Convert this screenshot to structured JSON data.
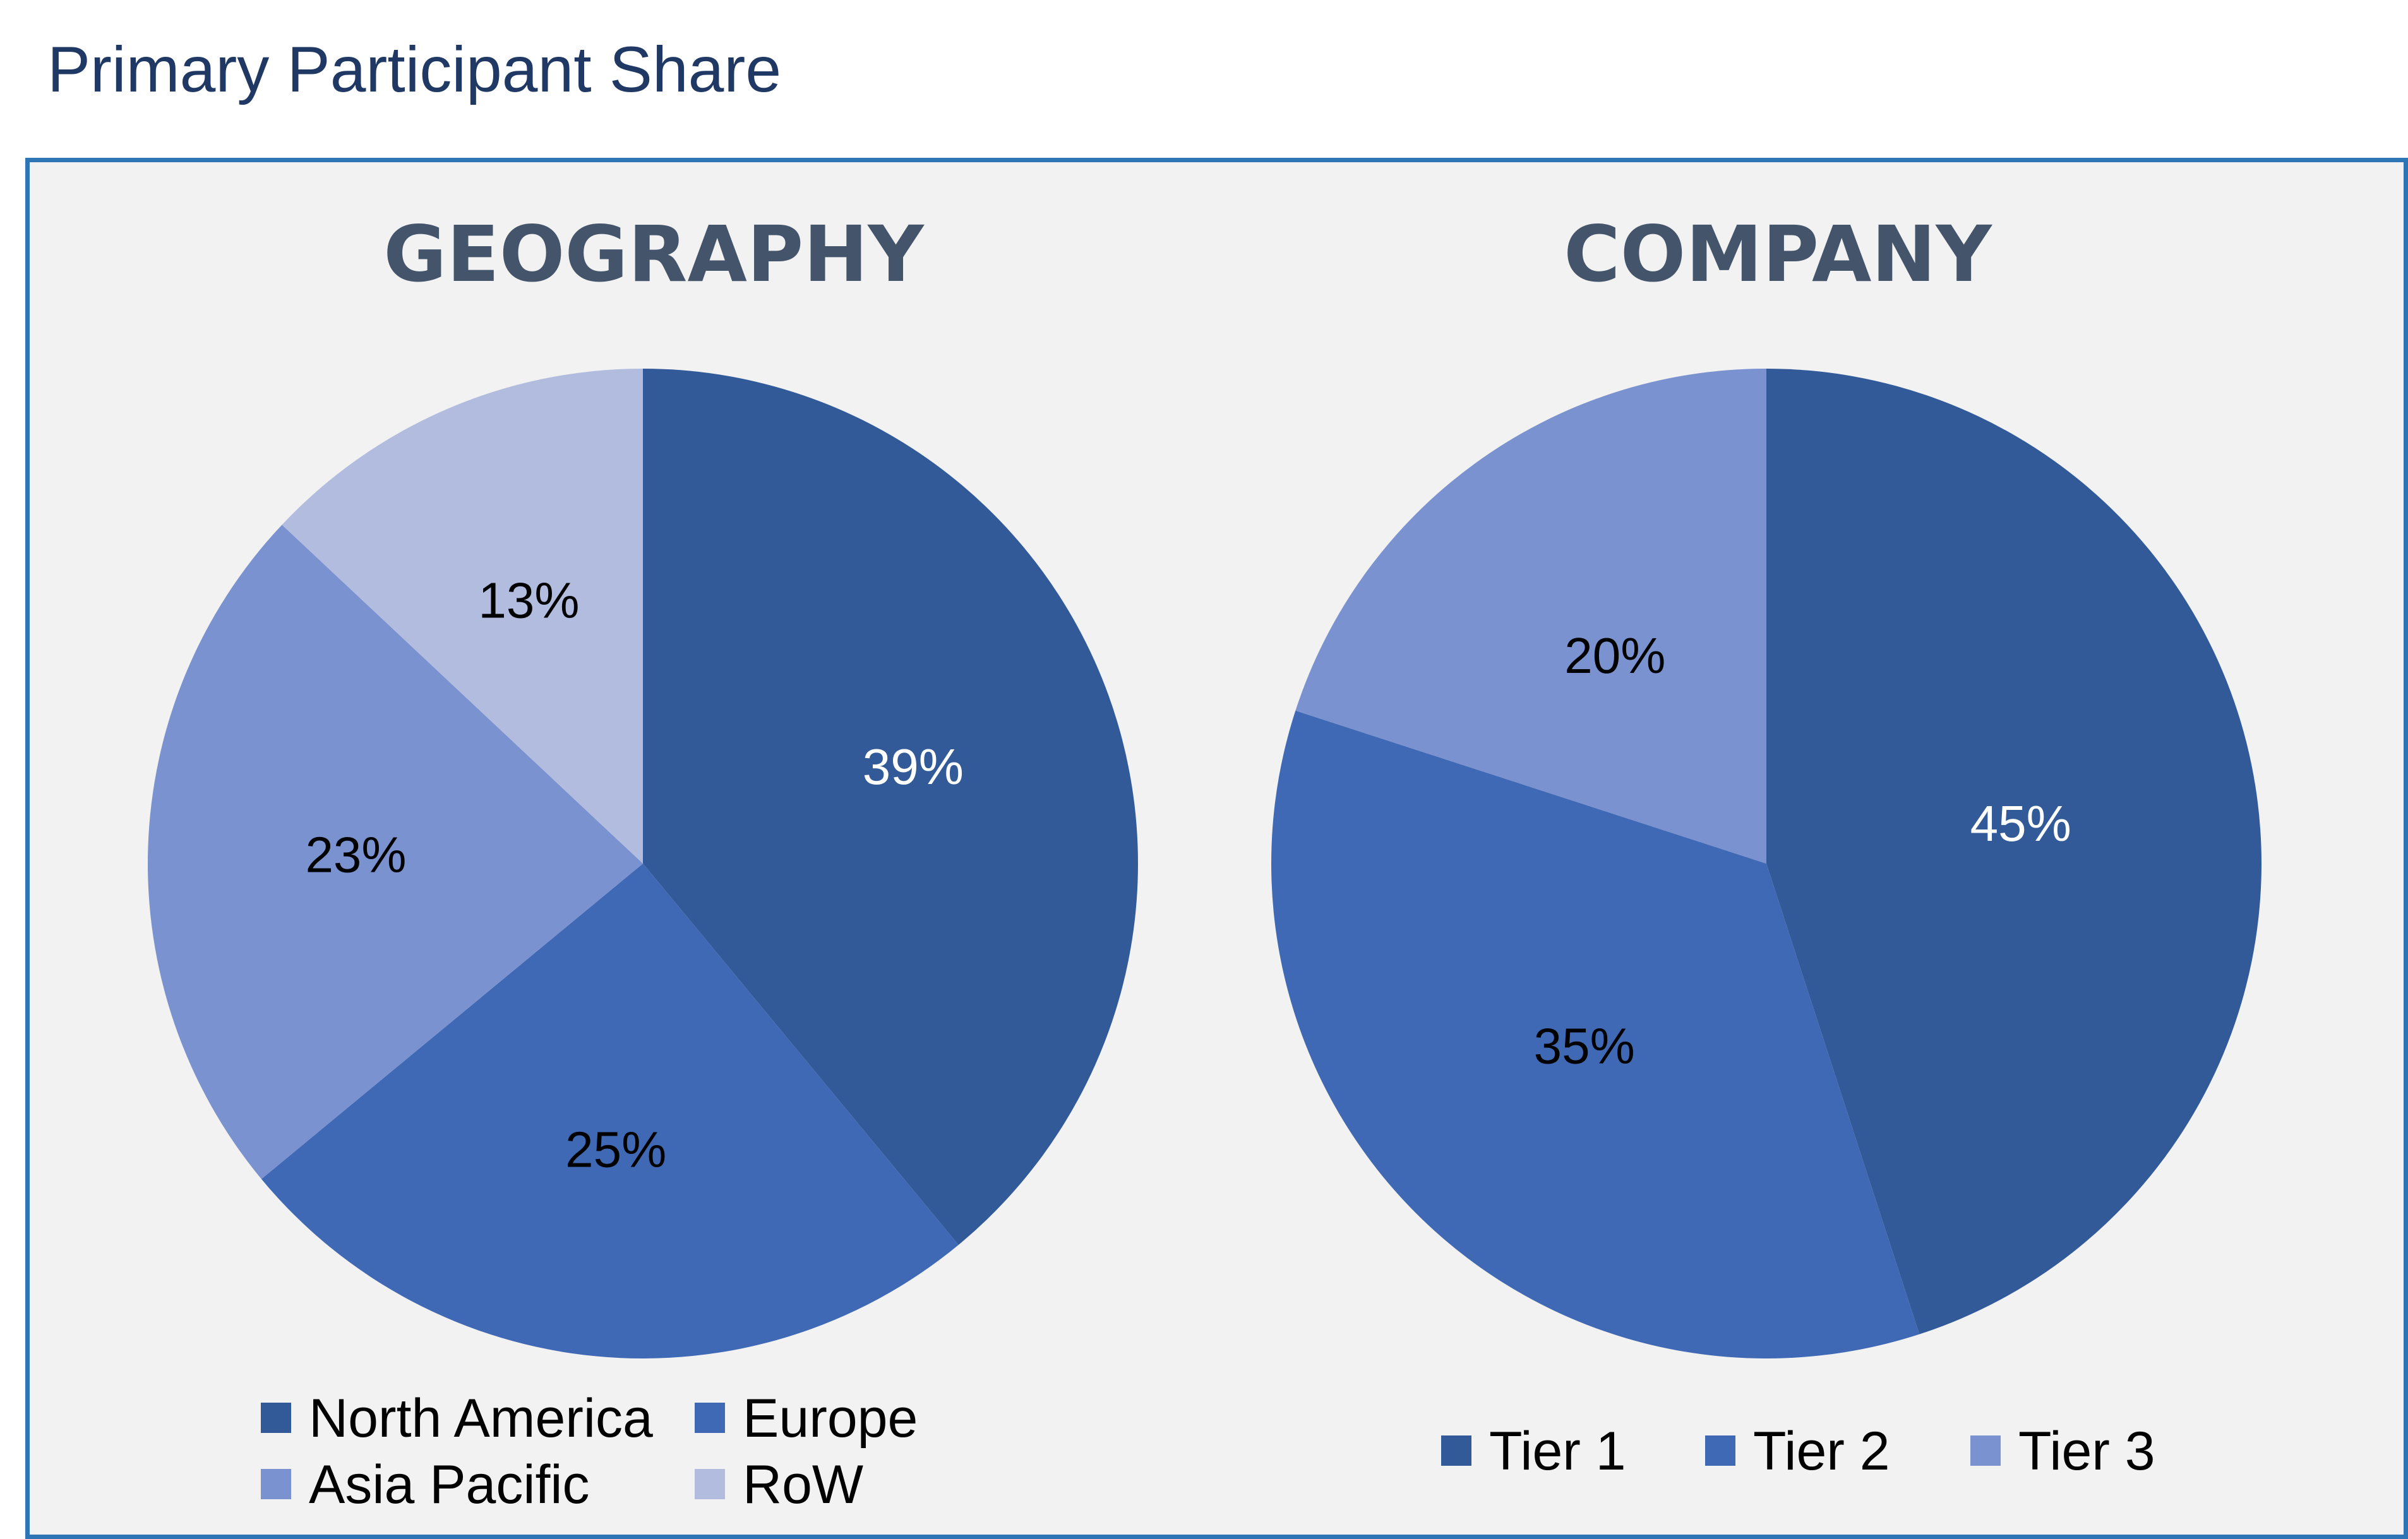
{
  "page": {
    "title": "Primary Participant Share"
  },
  "colors": {
    "frame_border": "#2e75b6",
    "frame_background": "#f2f2f2",
    "title_text": "#1f3864",
    "chart_title_text": "#44546a"
  },
  "chart_data": [
    {
      "type": "pie",
      "title": "GEOGRAPHY",
      "start_angle_deg": 0,
      "direction": "clockwise",
      "legend_position": "bottom",
      "slices": [
        {
          "name": "North America",
          "value": 39,
          "label": "39%",
          "color": "#335a98",
          "label_color": "#ffffff"
        },
        {
          "name": "Europe",
          "value": 25,
          "label": "25%",
          "color": "#3f69b5",
          "label_color": "#000000"
        },
        {
          "name": "Asia Pacific",
          "value": 23,
          "label": "23%",
          "color": "#7a92cf",
          "label_color": "#000000"
        },
        {
          "name": "RoW",
          "value": 13,
          "label": "13%",
          "color": "#b1bcdf",
          "label_color": "#000000"
        }
      ]
    },
    {
      "type": "pie",
      "title": "COMPANY",
      "start_angle_deg": 0,
      "direction": "clockwise",
      "legend_position": "bottom",
      "slices": [
        {
          "name": "Tier 1",
          "value": 45,
          "label": "45%",
          "color": "#335a98",
          "label_color": "#ffffff"
        },
        {
          "name": "Tier 2",
          "value": 35,
          "label": "35%",
          "color": "#3f69b5",
          "label_color": "#000000"
        },
        {
          "name": "Tier 3",
          "value": 20,
          "label": "20%",
          "color": "#7a92cf",
          "label_color": "#000000"
        }
      ]
    }
  ]
}
